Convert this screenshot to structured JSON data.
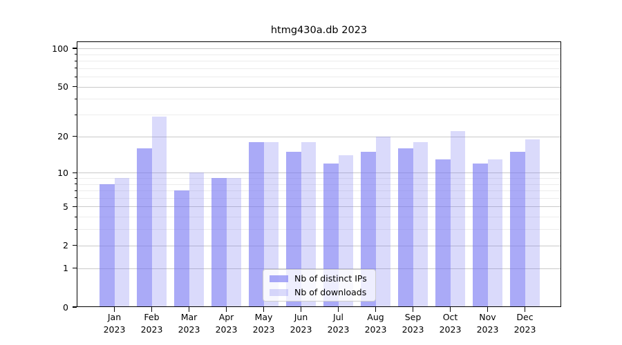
{
  "chart_data": {
    "type": "bar",
    "title": "htmg430a.db 2023",
    "categories": [
      "Jan",
      "Feb",
      "Mar",
      "Apr",
      "May",
      "Jun",
      "Jul",
      "Aug",
      "Sep",
      "Oct",
      "Nov",
      "Dec"
    ],
    "category_year": "2023",
    "series": [
      {
        "name": "Nb of distinct IPs",
        "fill": "rgba(118,118,242,0.62)",
        "approx_solid_color": "#aaaaf5",
        "values": [
          8,
          16,
          7,
          9,
          18,
          15,
          12,
          15,
          16,
          13,
          12,
          15
        ]
      },
      {
        "name": "Nb of downloads",
        "fill": "rgba(118,118,242,0.27)",
        "approx_solid_color": "#dcdcfa",
        "values": [
          9,
          29,
          10,
          9,
          18,
          18,
          14,
          20,
          18,
          22,
          13,
          19
        ]
      }
    ],
    "xlabel": "",
    "ylabel": "",
    "y_scale": "log10(1+x)",
    "ylim": [
      0,
      113
    ],
    "y_ticks_major": [
      0,
      1,
      2,
      5,
      10,
      20,
      50,
      100
    ],
    "y_tick_labels": [
      "0",
      "1",
      "2",
      "5",
      "10",
      "20",
      "50",
      "100"
    ],
    "y_ticks_minor": [
      3,
      4,
      6,
      7,
      8,
      9,
      30,
      40,
      60,
      70,
      80,
      90
    ],
    "grid": {
      "on": true,
      "major_color": "#c9c9c9",
      "minor_color": "#ececec"
    },
    "axis_color": "#000000",
    "legend": {
      "position": "lower center",
      "entries": [
        "Nb of distinct IPs",
        "Nb of downloads"
      ]
    }
  }
}
